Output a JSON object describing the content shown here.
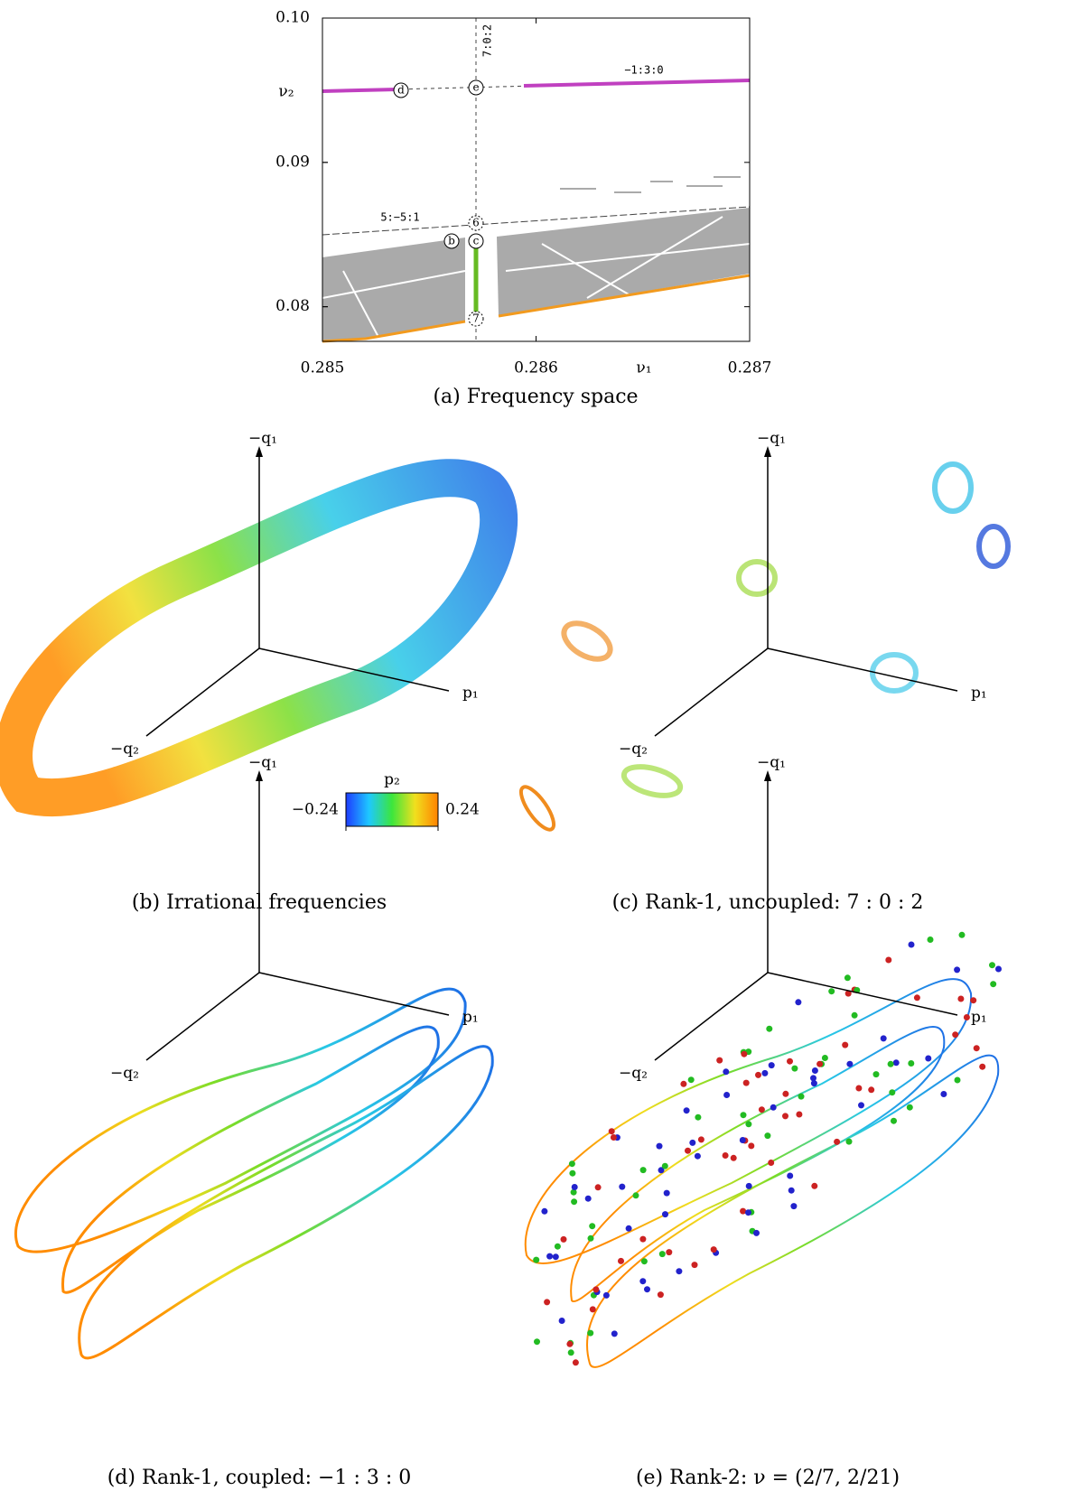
{
  "chart_data": {
    "type": "scatter",
    "caption": "(a) Frequency space",
    "x_label": "ν₁",
    "y_label": "ν₂",
    "xlim": [
      0.285,
      0.287
    ],
    "ylim": [
      0.0776,
      0.1
    ],
    "xticks": [
      0.285,
      0.286,
      0.287
    ],
    "yticks": [
      {
        "value": 0.1,
        "label": "0.10"
      },
      0.09,
      0.08
    ],
    "annotations": [
      "7:0:2",
      "−1:3:0",
      "5:−5:1",
      "d",
      "e",
      "b",
      "c",
      "6",
      "7"
    ]
  },
  "panels": [
    {
      "caption": "(b) Irrational frequencies",
      "axes": [
        "−q₁",
        "p₁",
        "−q₂"
      ]
    },
    {
      "caption": "(c) Rank-1, uncoupled: 7 : 0 : 2",
      "axes": [
        "−q₁",
        "p₁",
        "−q₂"
      ]
    },
    {
      "caption": "(d) Rank-1, coupled: −1 : 3 : 0",
      "axes": [
        "−q₁",
        "p₁",
        "−q₂"
      ]
    },
    {
      "caption": "(e) Rank-2: ν = (2/7, 2/21)",
      "axes": [
        "−q₁",
        "p₁",
        "−q₂"
      ]
    }
  ],
  "colorbar": {
    "label": "p₂",
    "range": [
      -0.24,
      0.24
    ],
    "ticks": [
      {
        "value": -0.24,
        "label": "−0.24"
      },
      0.24
    ]
  }
}
